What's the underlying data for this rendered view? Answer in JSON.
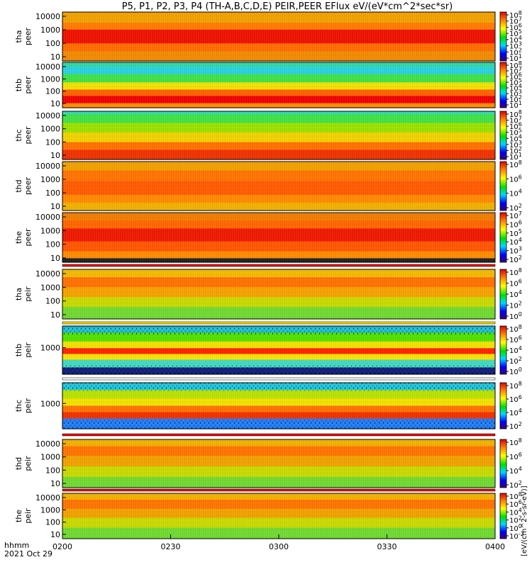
{
  "chart_data": {
    "type": "heatmap",
    "title": "P5, P1, P2, P3, P4 (TH-A,B,C,D,E) PEIR,PEER EFlux eV/(eV*cm^2*sec*sr)",
    "x_ticks": [
      "0200",
      "0230",
      "0300",
      "0330",
      "0400"
    ],
    "x_range": [
      "0200",
      "0400"
    ],
    "x_footer": [
      "hhmm",
      "2021 Oct 29"
    ],
    "colorbar_unit": "[eV/(cm^2-s-sr-eV)]",
    "panels": [
      {
        "id": "tha-peer",
        "ylabel": [
          "tha",
          "peer"
        ],
        "yticks": [
          "10000",
          "1000",
          "100",
          "10"
        ],
        "cbticks": [
          "10^8",
          "10^7",
          "10^6",
          "10^5",
          "10^4",
          "10^3",
          "10^2",
          "10^1"
        ],
        "log_scale": true
      },
      {
        "id": "thb-peer",
        "ylabel": [
          "thb",
          "peer"
        ],
        "yticks": [
          "10000",
          "1000",
          "100",
          "10"
        ],
        "cbticks": [
          "10^8",
          "10^7",
          "10^6",
          "10^5",
          "10^4",
          "10^3",
          "10^2",
          "10^1"
        ],
        "log_scale": true
      },
      {
        "id": "thc-peer",
        "ylabel": [
          "thc",
          "peer"
        ],
        "yticks": [
          "10000",
          "1000",
          "100",
          "10"
        ],
        "cbticks": [
          "10^8",
          "10^7",
          "10^6",
          "10^5",
          "10^4",
          "10^3",
          "10^2",
          "10^1"
        ],
        "log_scale": true
      },
      {
        "id": "thd-peer",
        "ylabel": [
          "thd",
          "peer"
        ],
        "yticks": [
          "10000",
          "1000",
          "100",
          "10"
        ],
        "cbticks": [
          "10^8",
          "10^6",
          "10^4",
          "10^2"
        ],
        "log_scale": true
      },
      {
        "id": "the-peer",
        "ylabel": [
          "the",
          "peer"
        ],
        "yticks": [
          "10000",
          "1000",
          "100",
          "10"
        ],
        "cbticks": [
          "10^7",
          "10^6",
          "10^5",
          "10^4",
          "10^3",
          "10^2"
        ],
        "log_scale": true
      },
      {
        "id": "tha-peir",
        "ylabel": [
          "tha",
          "peir"
        ],
        "yticks": [
          "10000",
          "1000",
          "100",
          "10"
        ],
        "cbticks": [
          "10^8",
          "10^6",
          "10^4",
          "10^2",
          "10^0"
        ],
        "log_scale": true
      },
      {
        "id": "thb-peir",
        "ylabel": [
          "thb",
          "peir"
        ],
        "yticks": [
          "1000"
        ],
        "cbticks": [
          "10^8",
          "10^6",
          "10^4",
          "10^2",
          "10^0"
        ],
        "log_scale": true
      },
      {
        "id": "thc-peir",
        "ylabel": [
          "thc",
          "peir"
        ],
        "yticks": [
          "1000"
        ],
        "cbticks": [
          "10^8",
          "10^6",
          "10^4",
          "10^2"
        ],
        "log_scale": true
      },
      {
        "id": "thd-peir",
        "ylabel": [
          "thd",
          "peir"
        ],
        "yticks": [
          "10000",
          "1000",
          "100",
          "10"
        ],
        "cbticks": [
          "10^8",
          "10^6",
          "10^4",
          "10^2"
        ],
        "log_scale": true
      },
      {
        "id": "the-peir",
        "ylabel": [
          "the",
          "peir"
        ],
        "yticks": [
          "10000",
          "1000",
          "100",
          "10"
        ],
        "cbticks": [
          "10^8",
          "10^6",
          "10^4",
          "10^2",
          "10^0",
          "10^-2"
        ],
        "log_scale": true
      }
    ]
  }
}
